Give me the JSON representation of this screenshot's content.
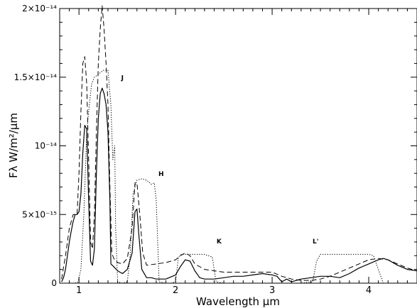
{
  "chart_data": {
    "type": "line",
    "xlabel": "Wavelength μm",
    "ylabel": "Fλ W/m²/μm",
    "xlim": [
      0.8,
      4.5
    ],
    "ylim": [
      0,
      2e-14
    ],
    "x_ticks": [
      1,
      2,
      3,
      4
    ],
    "x_tick_labels": [
      "1",
      "2",
      "3",
      "4"
    ],
    "y_ticks": [
      0,
      5e-15,
      1e-14,
      1.5e-14,
      2e-14
    ],
    "y_tick_labels": [
      "0",
      "5×10⁻¹⁵",
      "10⁻¹⁴",
      "1.5×10⁻¹⁴",
      "2×10⁻¹⁴"
    ],
    "grid": false,
    "band_labels": [
      {
        "text": "J",
        "x": 1.45,
        "y": 1.48e-14
      },
      {
        "text": "H",
        "x": 1.85,
        "y": 7.8e-15
      },
      {
        "text": "K",
        "x": 2.45,
        "y": 2.9e-15
      },
      {
        "text": "L'",
        "x": 3.45,
        "y": 2.9e-15
      }
    ],
    "series": [
      {
        "style": "solid",
        "x": [
          0.82,
          0.84,
          0.86,
          0.88,
          0.9,
          0.92,
          0.94,
          0.96,
          0.98,
          1.0,
          1.02,
          1.04,
          1.06,
          1.08,
          1.1,
          1.12,
          1.14,
          1.16,
          1.18,
          1.2,
          1.22,
          1.24,
          1.26,
          1.28,
          1.3,
          1.32,
          1.33,
          1.36,
          1.4,
          1.45,
          1.5,
          1.55,
          1.58,
          1.6,
          1.62,
          1.65,
          1.7,
          1.75,
          1.8,
          1.9,
          2.0,
          2.05,
          2.1,
          2.15,
          2.2,
          2.25,
          2.3,
          2.4,
          2.5,
          2.6,
          2.7,
          2.8,
          2.9,
          3.0,
          3.05,
          3.1,
          3.15,
          3.2,
          3.3,
          3.4,
          3.5,
          3.6,
          3.7,
          3.8,
          3.9,
          4.0,
          4.1,
          4.15,
          4.2,
          4.3,
          4.4,
          4.5
        ],
        "y": [
          1e-16,
          4e-16,
          1e-15,
          2e-15,
          3e-15,
          3.8e-15,
          4.5e-15,
          5e-15,
          5e-15,
          5.2e-15,
          6.5e-15,
          9.5e-15,
          1.15e-14,
          1.12e-14,
          6e-15,
          1.6e-15,
          1.3e-15,
          2.5e-15,
          8e-15,
          1.2e-14,
          1.38e-14,
          1.42e-14,
          1.38e-14,
          1.3e-14,
          1.1e-14,
          6e-15,
          1.4e-15,
          1.2e-15,
          9e-16,
          7e-16,
          1e-15,
          2.2e-15,
          5.2e-15,
          5.4e-15,
          3.5e-15,
          1e-15,
          4e-16,
          4e-16,
          3e-16,
          3e-16,
          6e-16,
          1.2e-15,
          1.7e-15,
          1.6e-15,
          9e-16,
          4e-16,
          3e-16,
          3e-16,
          4e-16,
          5e-16,
          5e-16,
          6e-16,
          7e-16,
          6e-16,
          5e-16,
          1e-16,
          3e-16,
          1e-16,
          3e-16,
          4e-16,
          5e-16,
          5e-16,
          4e-16,
          7e-16,
          1.1e-15,
          1.4e-15,
          1.7e-15,
          1.8e-15,
          1.7e-15,
          1.3e-15,
          1e-15,
          9e-16
        ]
      },
      {
        "style": "dashed",
        "x": [
          0.82,
          0.86,
          0.9,
          0.94,
          0.98,
          1.0,
          1.02,
          1.04,
          1.06,
          1.08,
          1.1,
          1.12,
          1.14,
          1.16,
          1.18,
          1.2,
          1.22,
          1.24,
          1.26,
          1.28,
          1.3,
          1.32,
          1.34,
          1.36,
          1.4,
          1.45,
          1.5,
          1.55,
          1.58,
          1.6,
          1.63,
          1.66,
          1.7,
          1.8,
          1.9,
          2.0,
          2.05,
          2.1,
          2.15,
          2.2,
          2.3,
          2.4,
          2.5,
          2.6,
          2.7,
          2.8,
          2.9,
          3.0,
          3.1,
          3.2,
          3.3,
          3.4,
          3.5,
          3.6,
          3.7,
          3.8,
          3.9,
          4.0,
          4.1,
          4.2,
          4.3,
          4.4,
          4.5
        ],
        "y": [
          3e-16,
          2e-15,
          4e-15,
          5e-15,
          5e-15,
          8e-15,
          1.25e-14,
          1.6e-14,
          1.65e-14,
          1.45e-14,
          9e-15,
          3e-15,
          2.5e-15,
          5e-15,
          1.1e-14,
          1.6e-14,
          1.85e-14,
          2.02e-14,
          1.85e-14,
          1.6e-14,
          1.3e-14,
          7e-15,
          2.2e-15,
          1.8e-15,
          1.5e-15,
          1.4e-15,
          1.8e-15,
          4e-15,
          7.3e-15,
          7.3e-15,
          5e-15,
          2.2e-15,
          1.3e-15,
          1.4e-15,
          1.5e-15,
          1.7e-15,
          2e-15,
          2.2e-15,
          2e-15,
          1.4e-15,
          1e-15,
          9e-16,
          8e-16,
          8e-16,
          8e-16,
          8e-16,
          8e-16,
          8e-16,
          5e-16,
          3e-16,
          2e-16,
          2e-16,
          3e-16,
          5e-16,
          8e-16,
          1.1e-15,
          1.4e-15,
          1.7e-15,
          1.8e-15,
          1.7e-15,
          1.4e-15,
          1.1e-15,
          9e-16
        ]
      },
      {
        "style": "dotted",
        "x": [
          0.96,
          0.99,
          1.02,
          1.05,
          1.08,
          1.1,
          1.13,
          1.16,
          1.2,
          1.25,
          1.3,
          1.33,
          1.35,
          1.37,
          1.38,
          1.4,
          1.45,
          1.5,
          1.53,
          1.56,
          1.6,
          1.65,
          1.7,
          1.75,
          1.78,
          1.8,
          1.83,
          1.9,
          1.95,
          2.0,
          2.03,
          2.06,
          2.1,
          2.2,
          2.3,
          2.38,
          2.4,
          2.42,
          2.5,
          3.3,
          3.42,
          3.46,
          3.5,
          3.55,
          3.6,
          3.8,
          4.0,
          4.05,
          4.1,
          4.15
        ],
        "y": [
          0,
          1e-16,
          1e-15,
          5e-15,
          1.1e-14,
          1.25e-14,
          1.45e-14,
          1.5e-14,
          1.52e-14,
          1.55e-14,
          1.55e-14,
          1.3e-14,
          9e-15,
          1e-14,
          4e-15,
          1e-16,
          0,
          1e-16,
          2e-15,
          6.5e-15,
          7.5e-15,
          7.6e-15,
          7.5e-15,
          7.2e-15,
          7.3e-15,
          6e-15,
          1e-16,
          0,
          0,
          1e-16,
          1.9e-15,
          2.1e-15,
          2.1e-15,
          2.1e-15,
          2.1e-15,
          1.9e-15,
          1e-15,
          1e-16,
          0,
          0,
          1e-16,
          1.6e-15,
          2.1e-15,
          2.1e-15,
          2.1e-15,
          2.1e-15,
          2.1e-15,
          2e-15,
          1e-15,
          0
        ]
      }
    ]
  }
}
